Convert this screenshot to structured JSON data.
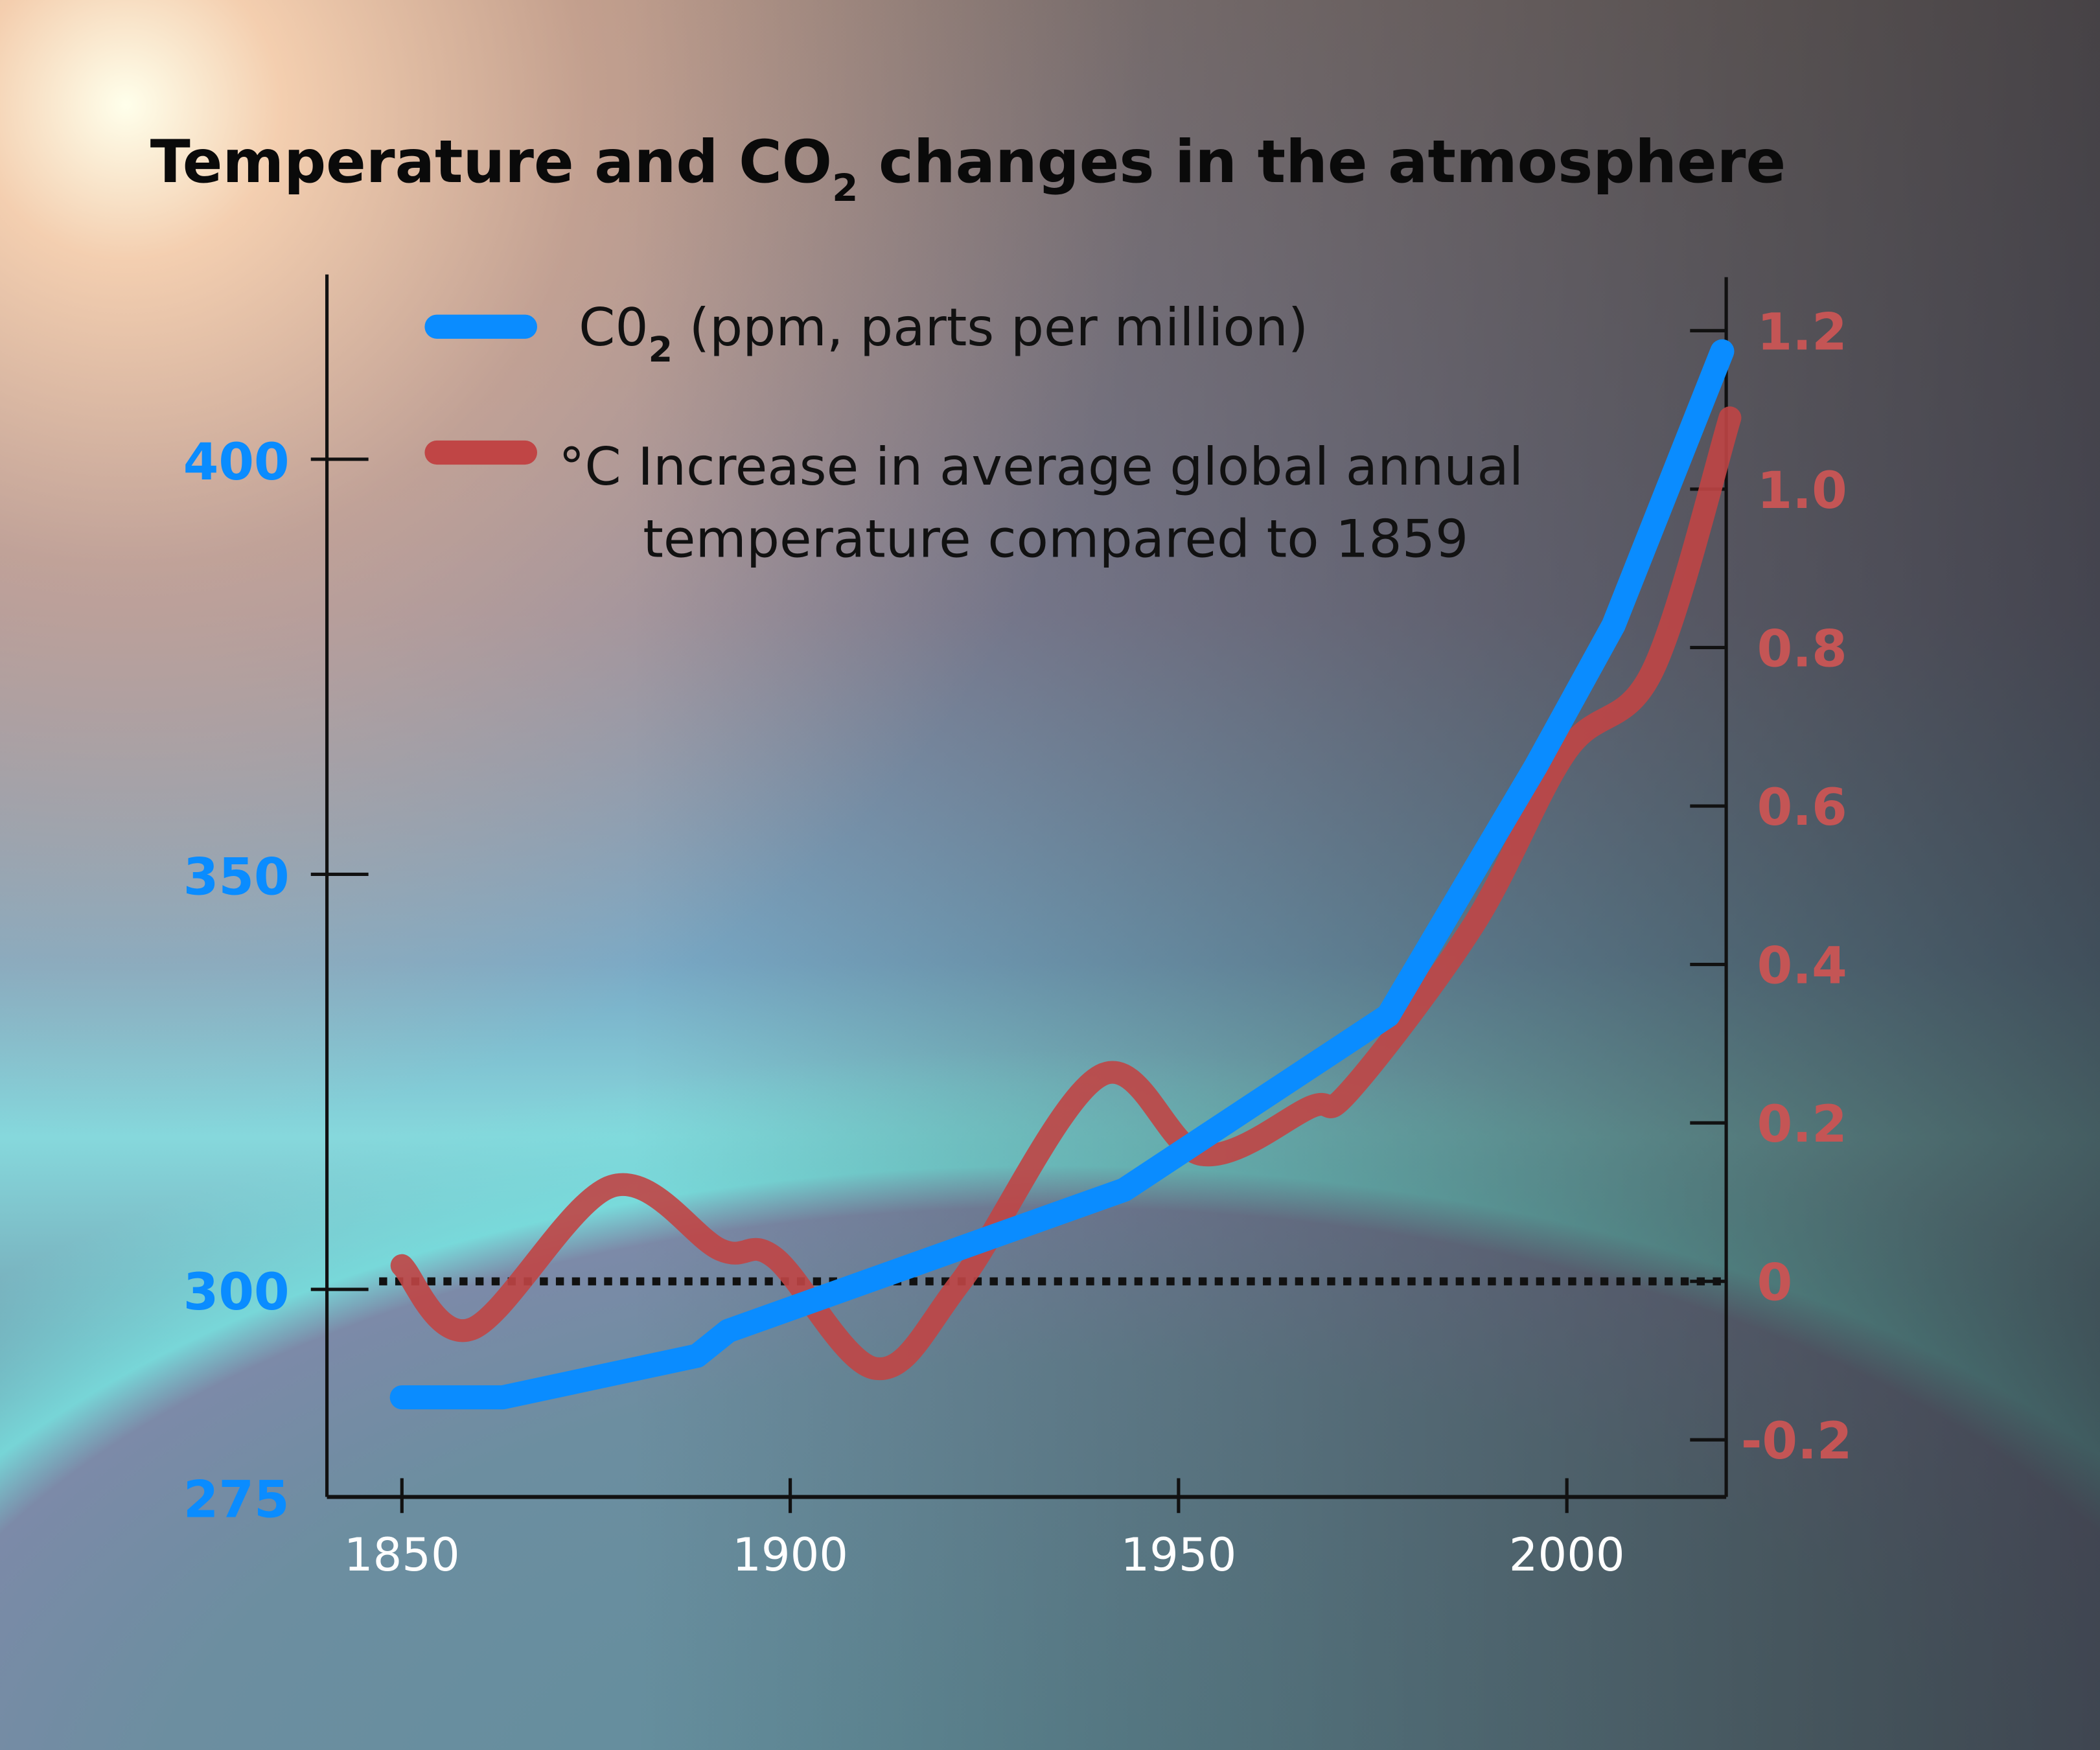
{
  "chart_data": {
    "type": "line",
    "title": "Temperature and CO2 changes in the atmosphere",
    "title_parts": {
      "before": "Temperature and CO",
      "sub": "2",
      "after": " changes in the atmosphere"
    },
    "xlabel": "",
    "x_ticks": [
      "1850",
      "1900",
      "1950",
      "2000"
    ],
    "x_tick_values": [
      1850,
      1900,
      1950,
      2000
    ],
    "xlim": [
      1850,
      2021
    ],
    "y_left": {
      "label": "CO2 (ppm)",
      "ticks": [
        "275",
        "300",
        "350",
        "400"
      ],
      "tick_values": [
        275,
        300,
        350,
        400
      ],
      "ylim": [
        275,
        420
      ]
    },
    "y_right": {
      "label": "°C",
      "ticks": [
        "-0.2",
        "0",
        "0.2",
        "0.4",
        "0.6",
        "0.8",
        "1.0",
        "1.2"
      ],
      "tick_values": [
        -0.2,
        0,
        0.2,
        0.4,
        0.6,
        0.8,
        1.0,
        1.2
      ],
      "ylim": [
        -0.27,
        1.3
      ]
    },
    "reference_line": {
      "axis": "right",
      "value": 0,
      "style": "dotted"
    },
    "legend": {
      "placement": "top-left",
      "co2": {
        "before": "C0",
        "sub": "2",
        "after": " (ppm, parts per million)"
      },
      "temp_line1": "°C Increase in average global annual",
      "temp_line2": "temperature compared to 1859"
    },
    "series": [
      {
        "name": "CO2 (ppm, parts per million)",
        "axis": "left",
        "color": "#0a8cff",
        "x": [
          1850,
          1863,
          1888,
          1892,
          1943,
          1977,
          1996,
          2006,
          2020
        ],
        "values": [
          287,
          287,
          292,
          295,
          312,
          333,
          363,
          380,
          413
        ]
      },
      {
        "name": "°C Increase in average global annual temperature compared to 1859",
        "axis": "right",
        "color": "#c04545",
        "x": [
          1850,
          1859,
          1877,
          1891,
          1898,
          1911,
          1922,
          1940,
          1953,
          1967,
          1972,
          1988,
          2000,
          2011,
          2021
        ],
        "values": [
          0.02,
          -0.06,
          0.12,
          0.04,
          0.03,
          -0.11,
          0.0,
          0.26,
          0.16,
          0.22,
          0.24,
          0.45,
          0.67,
          0.77,
          1.09
        ]
      }
    ]
  }
}
